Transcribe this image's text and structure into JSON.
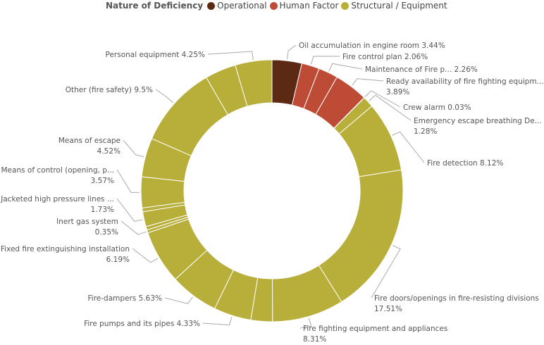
{
  "chart_data": {
    "type": "pie",
    "variant": "donut",
    "legend": {
      "title": "Nature of Deficiency",
      "placement": "top-left",
      "categories": [
        {
          "name": "Operational",
          "color": "#5C2A12"
        },
        {
          "name": "Human Factor",
          "color": "#BE4B36"
        },
        {
          "name": "Structural / Equipment",
          "color": "#B8AE3A"
        }
      ]
    },
    "slices": [
      {
        "label": "Oil accumulation in engine room",
        "value": 3.44,
        "value_label": "3.44%",
        "category": "Operational"
      },
      {
        "label": "Fire control plan",
        "value": 2.06,
        "value_label": "2.06%",
        "category": "Human Factor"
      },
      {
        "label": "Maintenance of Fire p...",
        "value": 2.26,
        "value_label": "2.26%",
        "category": "Human Factor"
      },
      {
        "label": "Ready availability of fire fighting equipm...",
        "value": 3.89,
        "value_label": "3.89%",
        "category": "Human Factor"
      },
      {
        "label": "Crew alarm",
        "value": 0.03,
        "value_label": "0.03%",
        "category": "Human Factor"
      },
      {
        "label": "Emergency escape breathing De...",
        "value": 1.28,
        "value_label": "1.28%",
        "category": "Structural / Equipment"
      },
      {
        "label": "Fire detection",
        "value": 8.12,
        "value_label": "8.12%",
        "category": "Structural / Equipment"
      },
      {
        "label": "Fire doors/openings in fire-resisting divisions",
        "value": 17.51,
        "value_label": "17.51%",
        "category": "Structural / Equipment"
      },
      {
        "label": "Fire fighting equipment and appliances",
        "value": 8.31,
        "value_label": "8.31%",
        "category": "Structural / Equipment"
      },
      {
        "label": "",
        "value": 2.5,
        "value_label": "",
        "category": "Structural / Equipment"
      },
      {
        "label": "Fire pumps and its pipes",
        "value": 4.33,
        "value_label": "4.33%",
        "category": "Structural / Equipment"
      },
      {
        "label": "Fire-dampers",
        "value": 5.63,
        "value_label": "5.63%",
        "category": "Structural / Equipment"
      },
      {
        "label": "Fixed fire extinguishing installation",
        "value": 6.19,
        "value_label": "6.19%",
        "category": "Structural / Equipment"
      },
      {
        "label": "Inert gas system",
        "value": 0.35,
        "value_label": "0.35%",
        "category": "Structural / Equipment"
      },
      {
        "label": "",
        "value": 0.4,
        "value_label": "",
        "category": "Structural / Equipment"
      },
      {
        "label": "Jacketed high pressure lines ...",
        "value": 1.73,
        "value_label": "1.73%",
        "category": "Structural / Equipment"
      },
      {
        "label": "",
        "value": 0.45,
        "value_label": "",
        "category": "Structural / Equipment"
      },
      {
        "label": "Means of control (opening, p...",
        "value": 3.57,
        "value_label": "3.57%",
        "category": "Structural / Equipment"
      },
      {
        "label": "Means of escape",
        "value": 4.52,
        "value_label": "4.52%",
        "category": "Structural / Equipment"
      },
      {
        "label": "Other (fire safety)",
        "value": 9.5,
        "value_label": "9.5%",
        "category": "Structural / Equipment"
      },
      {
        "label": "",
        "value": 3.6,
        "value_label": "",
        "category": "Structural / Equipment"
      },
      {
        "label": "Personal equipment",
        "value": 4.25,
        "value_label": "4.25%",
        "category": "Structural / Equipment"
      }
    ]
  }
}
